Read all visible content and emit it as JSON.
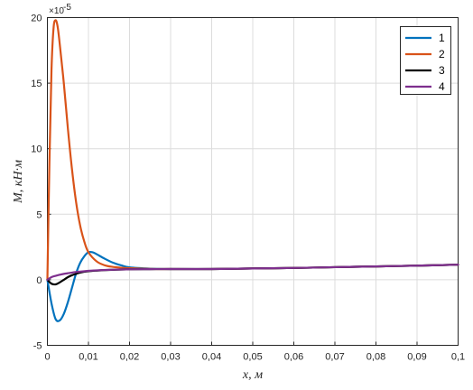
{
  "chart_data": {
    "type": "line",
    "xlabel": "x, м",
    "ylabel": "M, кН·м",
    "y_exponent_label": "×10",
    "y_exponent_power": "-5",
    "xlim": [
      0,
      0.1
    ],
    "ylim": [
      -5,
      20
    ],
    "grid": true,
    "legend_position": "top-right",
    "x_ticks": [
      0,
      0.01,
      0.02,
      0.03,
      0.04,
      0.05,
      0.06,
      0.07,
      0.08,
      0.09,
      0.1
    ],
    "x_tick_labels": [
      "0",
      "0,01",
      "0,02",
      "0,03",
      "0,04",
      "0,05",
      "0,06",
      "0,07",
      "0,08",
      "0,09",
      "0,1"
    ],
    "y_ticks": [
      -5,
      0,
      5,
      10,
      15,
      20
    ],
    "y_tick_labels": [
      "-5",
      "0",
      "5",
      "10",
      "15",
      "20"
    ],
    "series": [
      {
        "name": "1",
        "color": "#0072BD",
        "x": [
          0,
          0.001,
          0.002,
          0.003,
          0.004,
          0.005,
          0.006,
          0.007,
          0.008,
          0.009,
          0.01,
          0.011,
          0.012,
          0.014,
          0.016,
          0.018,
          0.02,
          0.025,
          0.03,
          0.04,
          0.05,
          0.06,
          0.07,
          0.08,
          0.09,
          0.1
        ],
        "y": [
          0,
          -1.8,
          -3.0,
          -3.1,
          -2.6,
          -1.7,
          -0.6,
          0.5,
          1.3,
          1.8,
          2.1,
          2.1,
          1.95,
          1.6,
          1.3,
          1.1,
          0.95,
          0.85,
          0.82,
          0.82,
          0.86,
          0.9,
          0.96,
          1.02,
          1.08,
          1.15
        ]
      },
      {
        "name": "2",
        "color": "#D95319",
        "x": [
          0,
          0.0005,
          0.001,
          0.0015,
          0.002,
          0.0025,
          0.003,
          0.004,
          0.005,
          0.006,
          0.007,
          0.008,
          0.009,
          0.01,
          0.012,
          0.014,
          0.016,
          0.018,
          0.02,
          0.025,
          0.03,
          0.04,
          0.05,
          0.06,
          0.07,
          0.08,
          0.09,
          0.1
        ],
        "y": [
          0,
          9,
          16,
          19.2,
          19.8,
          19.3,
          18,
          15,
          11.5,
          8.4,
          5.9,
          4.1,
          2.9,
          2.1,
          1.4,
          1.1,
          0.98,
          0.92,
          0.88,
          0.83,
          0.82,
          0.82,
          0.86,
          0.9,
          0.96,
          1.02,
          1.08,
          1.15
        ]
      },
      {
        "name": "3",
        "color": "#000000",
        "x": [
          0,
          0.001,
          0.002,
          0.003,
          0.004,
          0.005,
          0.006,
          0.007,
          0.008,
          0.01,
          0.012,
          0.015,
          0.02,
          0.025,
          0.03,
          0.04,
          0.05,
          0.06,
          0.07,
          0.08,
          0.09,
          0.1
        ],
        "y": [
          0,
          -0.3,
          -0.35,
          -0.2,
          0,
          0.2,
          0.35,
          0.45,
          0.55,
          0.65,
          0.7,
          0.75,
          0.8,
          0.81,
          0.82,
          0.82,
          0.86,
          0.9,
          0.96,
          1.02,
          1.08,
          1.15
        ]
      },
      {
        "name": "4",
        "color": "#7E2F8E",
        "x": [
          0,
          0.001,
          0.002,
          0.003,
          0.004,
          0.005,
          0.006,
          0.008,
          0.01,
          0.012,
          0.015,
          0.02,
          0.025,
          0.03,
          0.04,
          0.05,
          0.06,
          0.07,
          0.08,
          0.09,
          0.1
        ],
        "y": [
          0,
          0.2,
          0.3,
          0.38,
          0.45,
          0.5,
          0.55,
          0.62,
          0.68,
          0.72,
          0.76,
          0.8,
          0.81,
          0.82,
          0.82,
          0.86,
          0.9,
          0.96,
          1.02,
          1.08,
          1.15
        ]
      }
    ]
  }
}
